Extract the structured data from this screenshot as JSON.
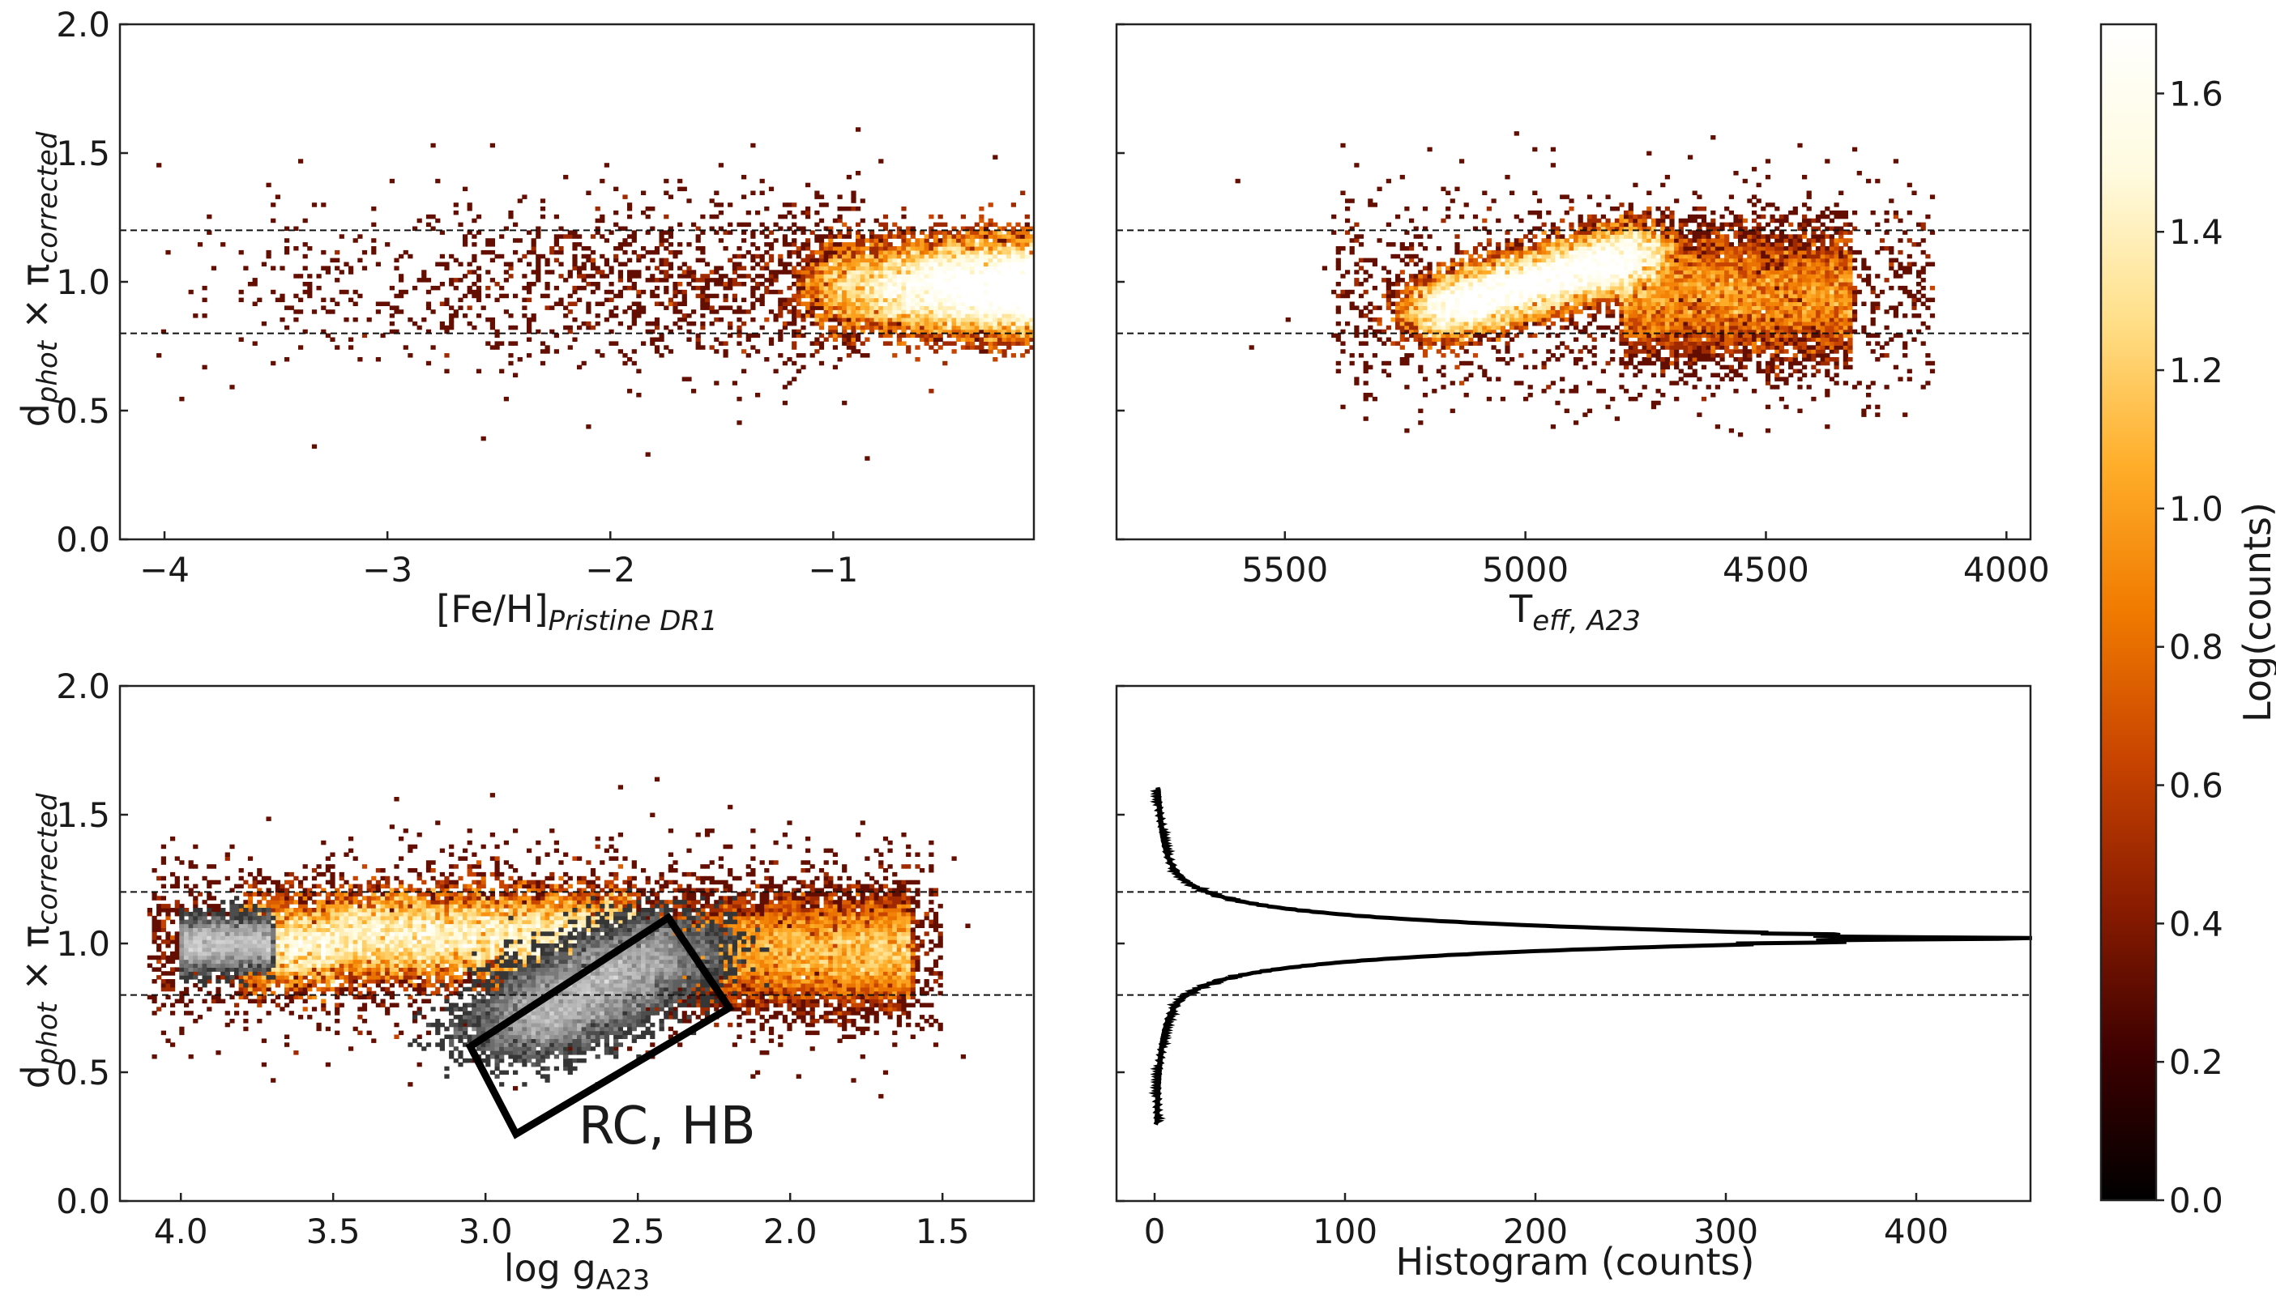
{
  "colors": {
    "cmap": [
      "#000000",
      "#3d0000",
      "#8a1c00",
      "#c84400",
      "#f07a00",
      "#ffae2a",
      "#ffe08a",
      "#fffbe0",
      "#ffffff"
    ],
    "grey_cmap": [
      "#101010",
      "#555555",
      "#a8a8a8",
      "#f4f4f4"
    ],
    "frame": "#222222",
    "dashed": "#111111"
  },
  "chart_data": [
    {
      "id": "panel-feh",
      "type": "heatmap",
      "xlabel": "[Fe/H]",
      "xlabel_sub": "Pristine DR1",
      "ylabel": "d",
      "ylabel_sub1": "phot",
      "ylabel_mid": " × π",
      "ylabel_sub2": "corrected",
      "xlim": [
        -4.2,
        -0.1
      ],
      "ylim": [
        0.0,
        2.0
      ],
      "xticks": [
        -4,
        -3,
        -2,
        -1
      ],
      "xtick_labels": [
        "−4",
        "−3",
        "−2",
        "−1"
      ],
      "yticks": [
        0.0,
        0.5,
        1.0,
        1.5,
        2.0
      ],
      "ytick_labels": [
        "0.0",
        "0.5",
        "1.0",
        "1.5",
        "2.0"
      ],
      "hlines": [
        0.8,
        1.2
      ],
      "dense_region": {
        "x_range": [
          -1.1,
          -0.1
        ],
        "y_center": 0.98,
        "y_spread": 0.11,
        "peak_log_counts": 1.6
      }
    },
    {
      "id": "panel-teff",
      "type": "heatmap",
      "xlabel": "T",
      "xlabel_sub": "eff, A23",
      "xlim": [
        5850,
        3950
      ],
      "ylim": [
        0.0,
        2.0
      ],
      "xticks": [
        5500,
        5000,
        4500,
        4000
      ],
      "xtick_labels": [
        "5500",
        "5000",
        "4500",
        "4000"
      ],
      "yticks": [
        0.0,
        0.5,
        1.0,
        1.5,
        2.0
      ],
      "hlines": [
        0.8,
        1.2
      ],
      "dense_region": {
        "x_range": [
          5250,
          4800
        ],
        "y_center": 0.96,
        "y_spread": 0.09,
        "peak_log_counts": 1.6
      }
    },
    {
      "id": "panel-logg",
      "type": "heatmap",
      "xlabel": "log g",
      "xlabel_sub": "A23",
      "ylabel": "d",
      "ylabel_sub1": "phot",
      "ylabel_mid": " × π",
      "ylabel_sub2": "corrected",
      "xlim": [
        4.2,
        1.2
      ],
      "ylim": [
        0.0,
        2.0
      ],
      "xticks": [
        4.0,
        3.5,
        3.0,
        2.5,
        2.0,
        1.5
      ],
      "xtick_labels": [
        "4.0",
        "3.5",
        "3.0",
        "2.5",
        "2.0",
        "1.5"
      ],
      "yticks": [
        0.0,
        0.5,
        1.0,
        1.5,
        2.0
      ],
      "ytick_labels": [
        "0.0",
        "0.5",
        "1.0",
        "1.5",
        "2.0"
      ],
      "hlines": [
        0.8,
        1.2
      ],
      "selection_box": {
        "corners": [
          [
            3.05,
            0.6
          ],
          [
            2.4,
            1.1
          ],
          [
            2.2,
            0.75
          ],
          [
            2.9,
            0.26
          ]
        ],
        "label": "RC, HB"
      }
    },
    {
      "id": "panel-hist",
      "type": "line",
      "xlabel": "Histogram (counts)",
      "xlim": [
        -20,
        460
      ],
      "ylim": [
        0.0,
        2.0
      ],
      "xticks": [
        0,
        100,
        200,
        300,
        400
      ],
      "xtick_labels": [
        "0",
        "100",
        "200",
        "300",
        "400"
      ],
      "yticks": [
        0.0,
        0.5,
        1.0,
        1.5,
        2.0
      ],
      "hlines": [
        0.8,
        1.2
      ],
      "series": [
        {
          "name": "histogram",
          "peak_y": 1.02,
          "peak_counts": 445,
          "y_range": [
            0.3,
            1.6
          ]
        }
      ]
    }
  ],
  "colorbar": {
    "label": "Log(counts)",
    "range": [
      0.0,
      1.7
    ],
    "ticks": [
      0.0,
      0.2,
      0.4,
      0.6,
      0.8,
      1.0,
      1.2,
      1.4,
      1.6
    ],
    "tick_labels": [
      "0.0",
      "0.2",
      "0.4",
      "0.6",
      "0.8",
      "1.0",
      "1.2",
      "1.4",
      "1.6"
    ]
  }
}
